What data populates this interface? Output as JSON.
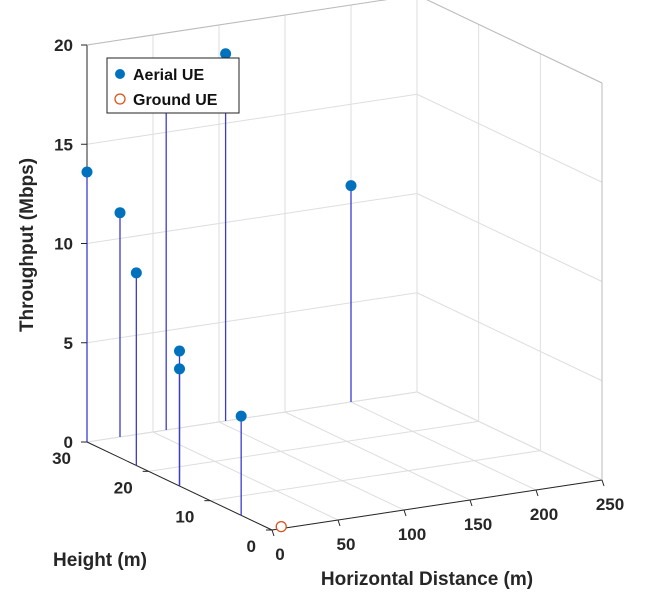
{
  "chart_data": {
    "type": "scatter",
    "title": "",
    "xlabel": "Horizontal Distance (m)",
    "ylabel": "Height (m)",
    "zlabel": "Throughput (Mbps)",
    "xlim": [
      0,
      250
    ],
    "ylim": [
      0,
      30
    ],
    "zlim": [
      0,
      20
    ],
    "xticks": [
      0,
      50,
      100,
      150,
      200,
      250
    ],
    "yticks": [
      0,
      10,
      20,
      30
    ],
    "zticks": [
      0,
      5,
      10,
      15,
      20
    ],
    "grid": true,
    "legend_position": "top-left",
    "series": [
      {
        "name": "Aerial UE",
        "marker": "filled-circle",
        "color": "#0072BD",
        "stem_color": "#3b3bd1",
        "points": [
          {
            "x": 0,
            "y": 30,
            "z": 13.6
          },
          {
            "x": 0,
            "y": 22,
            "z": 9.7
          },
          {
            "x": 0,
            "y": 15,
            "z": 6.8
          },
          {
            "x": 0,
            "y": 15,
            "z": 5.9
          },
          {
            "x": 25,
            "y": 30,
            "z": 11.3
          },
          {
            "x": 0,
            "y": 5,
            "z": 5.0
          },
          {
            "x": 60,
            "y": 30,
            "z": 17.7
          },
          {
            "x": 105,
            "y": 30,
            "z": 18.5
          },
          {
            "x": 200,
            "y": 30,
            "z": 10.9
          }
        ]
      },
      {
        "name": "Ground UE",
        "marker": "open-circle",
        "color": "#D95319",
        "stem_color": "#e04040",
        "points": [
          {
            "x": 7,
            "y": 0,
            "z": 0.1
          }
        ]
      }
    ]
  }
}
